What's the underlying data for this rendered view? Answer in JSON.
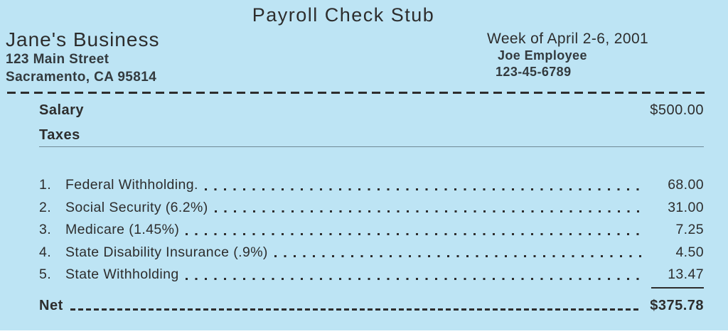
{
  "page": {
    "background_color": "#bde4f4",
    "text_color": "#2d2d2d"
  },
  "title": "Payroll Check Stub",
  "company": {
    "name": "Jane's Business",
    "address_line1": "123 Main Street",
    "address_line2": "Sacramento, CA 95814"
  },
  "pay_period": {
    "week": "Week of April 2-6, 2001",
    "employee": "Joe Employee",
    "ssn": "123-45-6789"
  },
  "salary": {
    "label": "Salary",
    "amount": "$500.00"
  },
  "taxes": {
    "label": "Taxes",
    "items": [
      {
        "num": "1.",
        "label": "Federal Withholding.",
        "amount": "68.00"
      },
      {
        "num": "2.",
        "label": "Social Security (6.2%)",
        "amount": "31.00"
      },
      {
        "num": "3.",
        "label": "Medicare (1.45%)",
        "amount": "7.25"
      },
      {
        "num": "4.",
        "label": "State Disability Insurance (.9%)",
        "amount": "4.50"
      },
      {
        "num": "5.",
        "label": "State Withholding",
        "amount": "13.47"
      }
    ]
  },
  "net": {
    "label": "Net",
    "amount": "$375.78"
  }
}
